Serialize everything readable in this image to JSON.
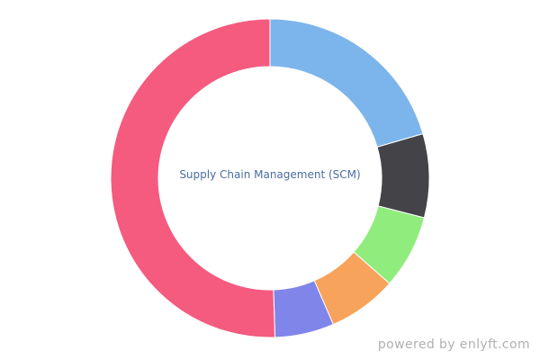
{
  "chart_data": {
    "type": "pie",
    "donut": true,
    "center_label": "Supply Chain Management (SCM)",
    "start": "top",
    "direction": "clockwise",
    "slices": [
      {
        "value": 20.5,
        "color": "#7cb5ec"
      },
      {
        "value": 8.5,
        "color": "#434348"
      },
      {
        "value": 7.5,
        "color": "#90ed7d"
      },
      {
        "value": 7.0,
        "color": "#f7a35c"
      },
      {
        "value": 6.0,
        "color": "#8085e9"
      },
      {
        "value": 50.5,
        "color": "#f45b7f"
      }
    ]
  },
  "footer": {
    "credit": "powered by enlyft.com"
  }
}
